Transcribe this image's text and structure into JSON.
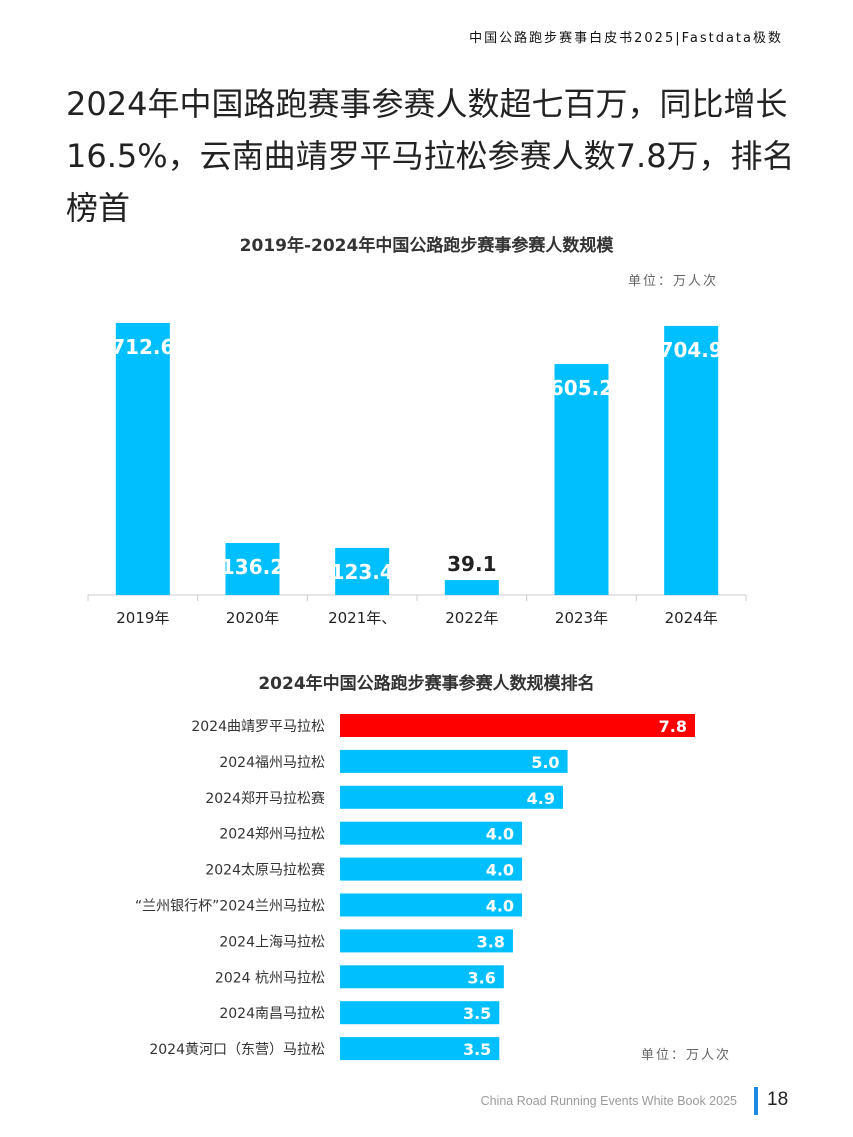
{
  "header": {
    "text": "中国公路跑步赛事白皮书2025|Fastdata极数"
  },
  "title": "2024年中国路跑赛事参赛人数超七百万，同比增长16.5%，云南曲靖罗平马拉松参赛人数7.8万，排名榜首",
  "colors": {
    "bar": "#00bfff",
    "highlight": "#ff0000",
    "axis": "#cccccc"
  },
  "chart_data": [
    {
      "type": "bar",
      "title": "2019年-2024年中国公路跑步赛事参赛人数规模",
      "unit": "单位：万人次",
      "categories": [
        "2019年",
        "2020年",
        "2021年、",
        "2022年",
        "2023年",
        "2024年"
      ],
      "values": [
        712.6,
        136.2,
        123.4,
        39.1,
        605.2,
        704.9
      ],
      "ylim": [
        0,
        712.6
      ]
    },
    {
      "type": "bar",
      "orientation": "horizontal",
      "title": "2024年中国公路跑步赛事参赛人数规模排名",
      "unit": "单位：万人次",
      "categories": [
        "2024曲靖罗平马拉松",
        "2024福州马拉松",
        "2024郑开马拉松赛",
        "2024郑州马拉松",
        "2024太原马拉松赛",
        "“兰州银行杯”2024兰州马拉松",
        "2024上海马拉松",
        "2024 杭州马拉松",
        "2024南昌马拉松",
        "2024黄河口（东营）马拉松"
      ],
      "values": [
        7.8,
        5.0,
        4.9,
        4.0,
        4.0,
        4.0,
        3.8,
        3.6,
        3.5,
        3.5
      ],
      "value_labels": [
        "7.8",
        "5.0",
        "4.9",
        "4.0",
        "4.0",
        "4.0",
        "3.8",
        "3.6",
        "3.5",
        "3.5"
      ],
      "highlight_index": 0,
      "xlim": [
        0,
        7.8
      ]
    }
  ],
  "footer": {
    "text": "China Road Running Events White Book 2025",
    "page": "18"
  }
}
